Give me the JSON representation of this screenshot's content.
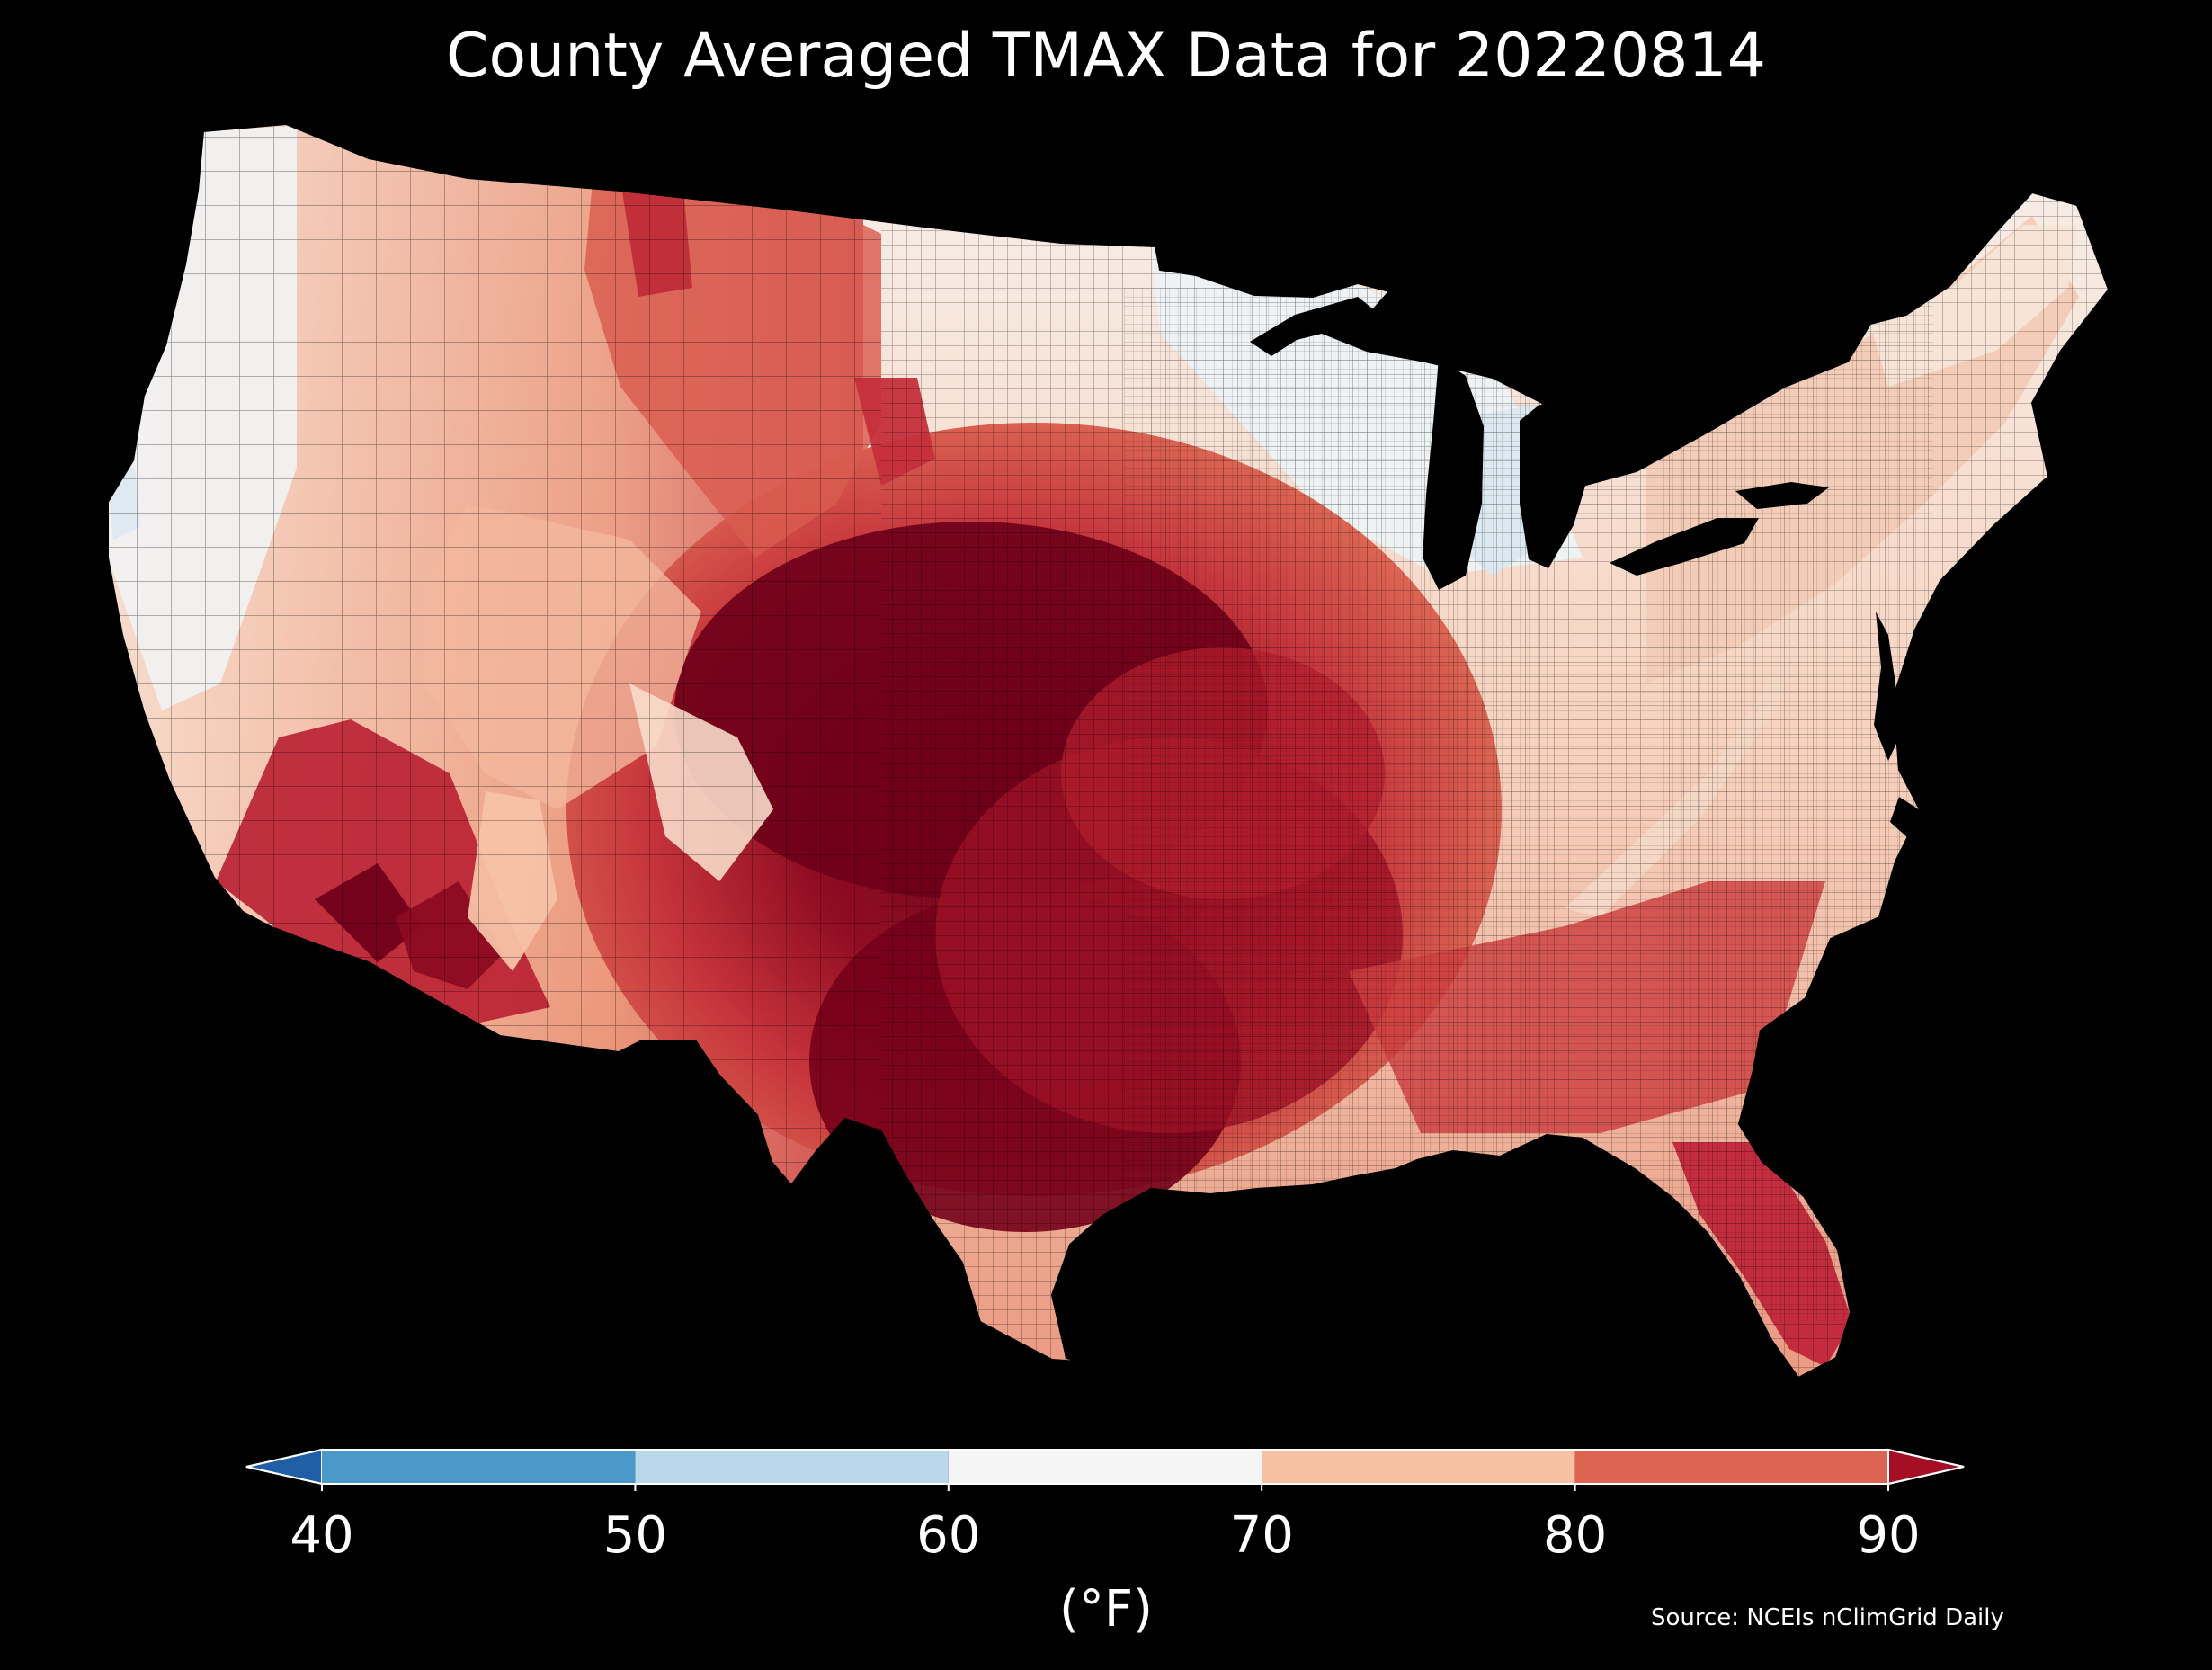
{
  "title": "County Averaged TMAX Data for 20220814",
  "colorbar": {
    "ticks": [
      "40",
      "50",
      "60",
      "70",
      "80",
      "90"
    ],
    "label": "(°F)",
    "bins": [
      {
        "name": "below-40",
        "color": "#1f5fa5"
      },
      {
        "name": "40-50",
        "color": "#4b99c9"
      },
      {
        "name": "50-60",
        "color": "#b9d9ea"
      },
      {
        "name": "60-70",
        "color": "#f5f5f5"
      },
      {
        "name": "70-80",
        "color": "#f8c0a3"
      },
      {
        "name": "80-90",
        "color": "#dc6450"
      },
      {
        "name": "above-90",
        "color": "#a50f26"
      }
    ]
  },
  "source": "Source: NCEIs nClimGrid Daily",
  "map_colors": {
    "ocean": "#000000",
    "hot_core": "#6a0017",
    "very_hot": "#9c0f25",
    "hot": "#c8323a",
    "warm": "#e58567",
    "mild": "#f7c3a6",
    "neutral": "#f3f1ef",
    "cool": "#dce8f1",
    "county_edge": "#000000"
  }
}
